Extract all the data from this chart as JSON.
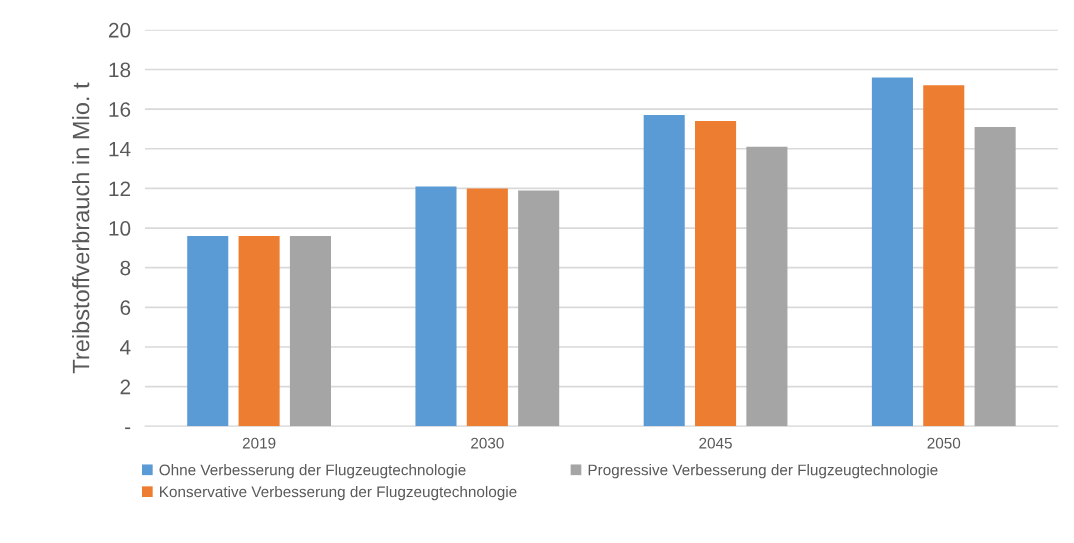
{
  "chart_data": {
    "type": "bar",
    "ylabel": "Treibstoffverbrauch in Mio. t",
    "categories": [
      "2019",
      "2030",
      "2045",
      "2050"
    ],
    "series": [
      {
        "name": "Ohne Verbesserung der Flugzeugtechnologie",
        "color": "#5b9bd5",
        "values": [
          9.6,
          12.1,
          15.7,
          17.6
        ]
      },
      {
        "name": "Konservative Verbesserung der Flugzeugtechnologie",
        "color": "#ed7d31",
        "values": [
          9.6,
          12.0,
          15.4,
          17.2
        ]
      },
      {
        "name": "Progressive Verbesserung der Flugzeugtechnologie",
        "color": "#a5a5a5",
        "values": [
          9.6,
          11.9,
          14.1,
          15.1
        ]
      }
    ],
    "ylim": [
      0,
      20
    ],
    "yticks": [
      {
        "value": 0,
        "label": "-"
      },
      2,
      4,
      6,
      8,
      10,
      12,
      14,
      16,
      18,
      20
    ],
    "grid": "y",
    "legend": "bottom"
  }
}
